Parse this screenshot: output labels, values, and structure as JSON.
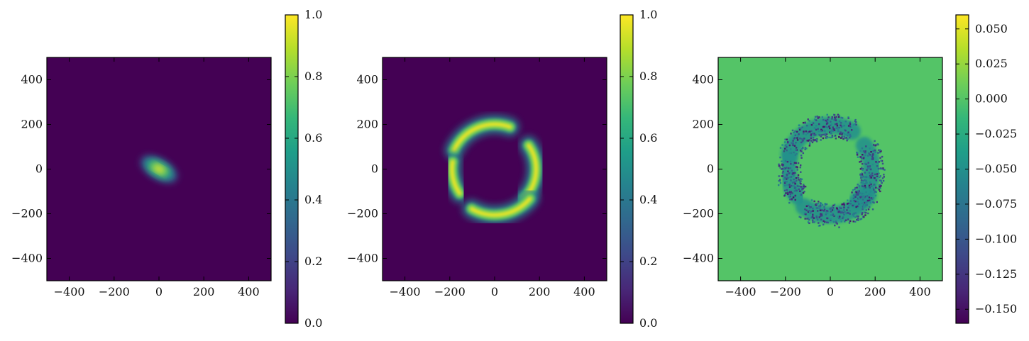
{
  "palette": {
    "viridis": [
      "#440154",
      "#482878",
      "#3e4989",
      "#31688e",
      "#26828e",
      "#1f9e89",
      "#35b779",
      "#6ece58",
      "#b5de2b",
      "#fde725"
    ],
    "axis": "#000000"
  },
  "chart_data": [
    {
      "type": "heatmap",
      "title": "",
      "xlabel": "",
      "ylabel": "",
      "xlim": [
        -500,
        500
      ],
      "ylim": [
        -500,
        500
      ],
      "xticks": [
        -400,
        -200,
        0,
        200,
        400
      ],
      "yticks": [
        -400,
        -200,
        0,
        200,
        400
      ],
      "xtick_labels": [
        "−400",
        "−200",
        "0",
        "200",
        "400"
      ],
      "ytick_labels": [
        "−400",
        "−200",
        "0",
        "200",
        "400"
      ],
      "colormap": "viridis",
      "colorbar": {
        "range": [
          0.0,
          1.0
        ],
        "ticks": [
          0.0,
          0.2,
          0.4,
          0.6,
          0.8,
          1.0
        ],
        "tick_labels": [
          "0.0",
          "0.2",
          "0.4",
          "0.6",
          "0.8",
          "1.0"
        ]
      },
      "background_value": 0.0,
      "features": [
        {
          "kind": "compact-elongated-blob",
          "center": [
            0,
            0
          ],
          "peak_value": 1.0,
          "extent": [
            180,
            90
          ],
          "orientation_deg": -30
        }
      ]
    },
    {
      "type": "heatmap",
      "title": "",
      "xlabel": "",
      "ylabel": "",
      "xlim": [
        -500,
        500
      ],
      "ylim": [
        -500,
        500
      ],
      "xticks": [
        -400,
        -200,
        0,
        200,
        400
      ],
      "yticks": [
        -400,
        -200,
        0,
        200,
        400
      ],
      "xtick_labels": [
        "−400",
        "−200",
        "0",
        "200",
        "400"
      ],
      "ytick_labels": [
        "−400",
        "−200",
        "0",
        "200",
        "400"
      ],
      "colormap": "viridis",
      "colorbar": {
        "range": [
          0.0,
          1.0
        ],
        "ticks": [
          0.0,
          0.2,
          0.4,
          0.6,
          0.8,
          1.0
        ],
        "tick_labels": [
          "0.0",
          "0.2",
          "0.4",
          "0.6",
          "0.8",
          "1.0"
        ]
      },
      "background_value": 0.0,
      "features": [
        {
          "kind": "arc",
          "center": [
            0,
            0
          ],
          "radius": 200,
          "from_deg": 70,
          "to_deg": 155,
          "peak_value": 1.0
        },
        {
          "kind": "arc",
          "center": [
            0,
            0
          ],
          "radius": 185,
          "from_deg": -45,
          "to_deg": 35,
          "peak_value": 1.0
        },
        {
          "kind": "arc",
          "center": [
            0,
            0
          ],
          "radius": 190,
          "from_deg": 170,
          "to_deg": 215,
          "peak_value": 1.0
        },
        {
          "kind": "arc",
          "center": [
            0,
            0
          ],
          "radius": 205,
          "from_deg": 240,
          "to_deg": 320,
          "peak_value": 1.0
        }
      ]
    },
    {
      "type": "heatmap",
      "title": "",
      "xlabel": "",
      "ylabel": "",
      "xlim": [
        -500,
        500
      ],
      "ylim": [
        -500,
        500
      ],
      "xticks": [
        -400,
        -200,
        0,
        200,
        400
      ],
      "yticks": [
        -400,
        -200,
        0,
        200,
        400
      ],
      "xtick_labels": [
        "−400",
        "−200",
        "0",
        "200",
        "400"
      ],
      "ytick_labels": [
        "−400",
        "−200",
        "0",
        "200",
        "400"
      ],
      "colormap": "viridis",
      "colorbar": {
        "range": [
          -0.16,
          0.06
        ],
        "ticks": [
          -0.15,
          -0.125,
          -0.1,
          -0.075,
          -0.05,
          -0.025,
          0.0,
          0.025,
          0.05
        ],
        "tick_labels": [
          "−0.150",
          "−0.125",
          "−0.100",
          "−0.075",
          "−0.050",
          "−0.025",
          "0.000",
          "0.025",
          "0.050"
        ]
      },
      "background_value": 0.0,
      "features": [
        {
          "kind": "noisy-arc-residual",
          "center": [
            0,
            0
          ],
          "radius": 195,
          "from_deg": 60,
          "to_deg": 160,
          "min_value": -0.15
        },
        {
          "kind": "noisy-arc-residual",
          "center": [
            0,
            0
          ],
          "radius": 185,
          "from_deg": -50,
          "to_deg": 35,
          "min_value": -0.15
        },
        {
          "kind": "noisy-arc-residual",
          "center": [
            0,
            0
          ],
          "radius": 190,
          "from_deg": 165,
          "to_deg": 220,
          "min_value": -0.15
        },
        {
          "kind": "noisy-arc-residual",
          "center": [
            0,
            0
          ],
          "radius": 205,
          "from_deg": 235,
          "to_deg": 325,
          "min_value": -0.15
        }
      ]
    }
  ]
}
